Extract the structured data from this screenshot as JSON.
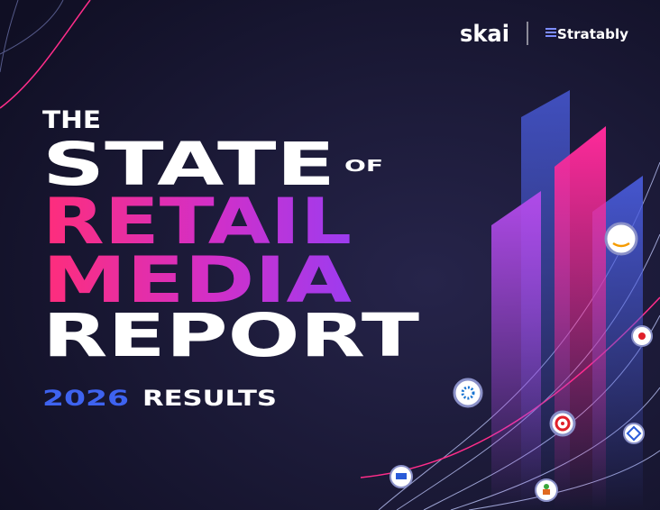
{
  "logos": {
    "brand": "skai",
    "partner": "Stratably"
  },
  "title": {
    "line1": "THE",
    "line2": "STATE",
    "line2_suffix": "OF",
    "line3": "RETAIL",
    "line4": "MEDIA",
    "line5": "REPORT"
  },
  "subtitle": {
    "year": "2026",
    "text": "RESULTS"
  }
}
